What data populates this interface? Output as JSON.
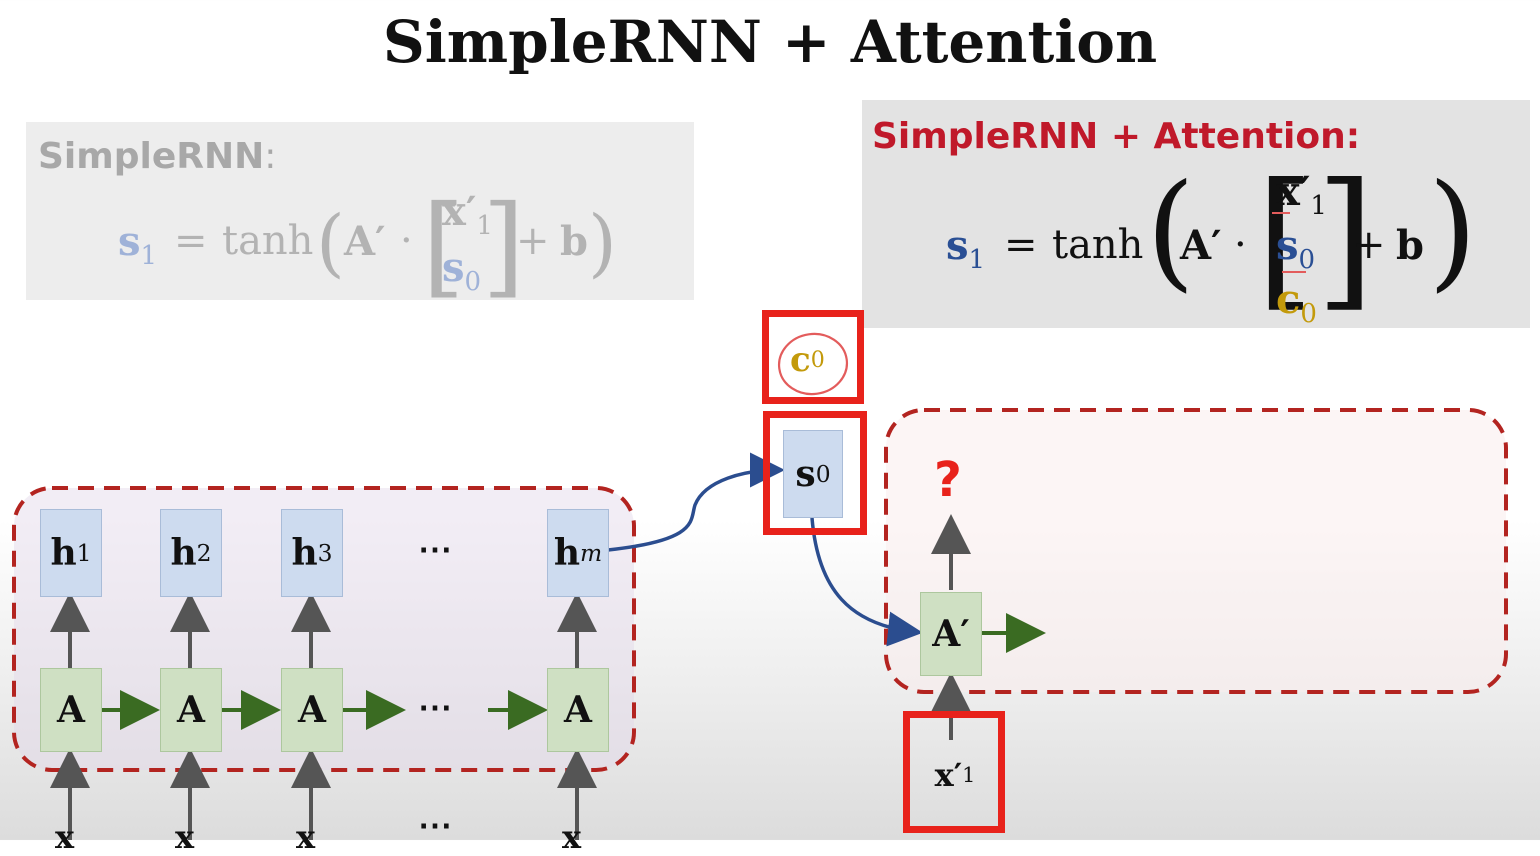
{
  "title": "SimpleRNN + Attention",
  "left_panel": {
    "heading": "SimpleRNN",
    "colon": ":",
    "formula": {
      "lhs": "s",
      "lhs_sub": "1",
      "equals": "=",
      "func": "tanh",
      "matrix": "A′",
      "dot": "·",
      "vec_top": "x′",
      "vec_top_sub": "1",
      "vec_bottom": "s",
      "vec_bottom_sub": "0",
      "plus": "+",
      "bias": "b"
    }
  },
  "right_panel": {
    "heading": "SimpleRNN + Attention",
    "colon": ":",
    "formula": {
      "lhs": "s",
      "lhs_sub": "1",
      "equals": "=",
      "func": "tanh",
      "matrix": "A′",
      "dot": "·",
      "vec_top": "x′",
      "vec_top_sub": "1",
      "vec_mid": "s",
      "vec_mid_sub": "0",
      "vec_bottom": "c",
      "vec_bottom_sub": "0",
      "plus": "+",
      "bias": "b"
    }
  },
  "encoder": {
    "hidden": [
      {
        "label": "h",
        "sub": "1"
      },
      {
        "label": "h",
        "sub": "2"
      },
      {
        "label": "h",
        "sub": "3"
      },
      {
        "label": "h",
        "sub": "m"
      }
    ],
    "cells": [
      "A",
      "A",
      "A",
      "A"
    ],
    "inputs": [
      "x",
      "x",
      "x",
      "x"
    ],
    "ellipsis": "⋯"
  },
  "context": {
    "label": "c",
    "sub": "0"
  },
  "state": {
    "label": "s",
    "sub": "0"
  },
  "decoder": {
    "cell": "A′",
    "input": "x′",
    "input_sub": "1",
    "output": "?"
  },
  "colors": {
    "red": "#e8221b",
    "dashed": "#b32420",
    "arrow_green": "#3a6b22",
    "curve_blue": "#2b4d8f",
    "gold": "#c39a0b"
  }
}
